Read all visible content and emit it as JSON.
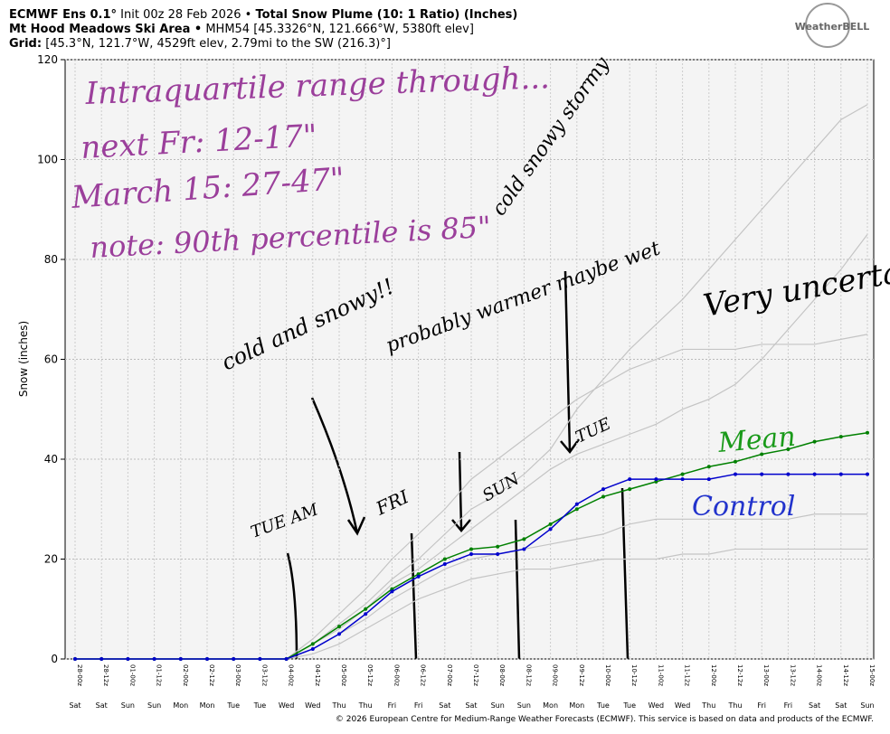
{
  "chart_data": {
    "type": "line",
    "header": {
      "line1": [
        "ECMWF Ens 0.1°",
        "Init 00z 28 Feb 2026 •",
        "Total Snow Plume (10: 1 Ratio) (Inches)"
      ],
      "line2": [
        "Mt Hood Meadows Ski Area •",
        "MHM54 [45.3326°N, 121.666°W, 5380ft elev]"
      ],
      "line3": [
        "Grid:",
        "[45.3°N, 121.7°W, 4529ft elev, 2.79mi to the SW (216.3)°]"
      ]
    },
    "logo": "WeatherBELL",
    "footer": "© 2026 European Centre for Medium-Range Weather Forecasts (ECMWF). This service is based on data and products of the ECMWF.",
    "y_label": "Snow (inches)",
    "ylim": [
      0,
      120
    ],
    "yticks": [
      0,
      20,
      40,
      60,
      80,
      100,
      120
    ],
    "grid": true,
    "categories": [
      "28-00z",
      "28-12z",
      "01-00z",
      "01-12z",
      "02-00z",
      "02-12z",
      "03-00z",
      "03-12z",
      "04-00z",
      "04-12z",
      "05-00z",
      "05-12z",
      "06-00z",
      "06-12z",
      "07-00z",
      "07-12z",
      "08-00z",
      "08-12z",
      "09-00z",
      "09-12z",
      "10-00z",
      "10-12z",
      "11-00z",
      "11-12z",
      "12-00z",
      "12-12z",
      "13-00z",
      "13-12z",
      "14-00z",
      "14-12z",
      "15-00z"
    ],
    "day_labels": [
      "Sat",
      "Sat",
      "Sun",
      "Sun",
      "Mon",
      "Mon",
      "Tue",
      "Tue",
      "Wed",
      "Wed",
      "Thu",
      "Thu",
      "Fri",
      "Fri",
      "Sat",
      "Sat",
      "Sun",
      "Sun",
      "Mon",
      "Mon",
      "Tue",
      "Tue",
      "Wed",
      "Wed",
      "Thu",
      "Thu",
      "Fri",
      "Fri",
      "Sat",
      "Sat",
      "Sun"
    ],
    "members": [
      {
        "color": "#c4c4c4",
        "values": [
          0,
          0,
          0,
          0,
          0,
          0,
          0,
          0,
          0,
          3,
          7,
          11,
          16,
          20,
          25,
          30,
          33,
          37,
          42,
          50,
          56,
          62,
          67,
          72,
          78,
          84,
          90,
          96,
          102,
          108,
          111
        ]
      },
      {
        "color": "#c4c4c4",
        "values": [
          0,
          0,
          0,
          0,
          0,
          0,
          0,
          0,
          0,
          2,
          5,
          8,
          12,
          15,
          18,
          20,
          21,
          22,
          23,
          24,
          25,
          27,
          28,
          28,
          28,
          28,
          28,
          28,
          29,
          29,
          29
        ]
      },
      {
        "color": "#c4c4c4",
        "values": [
          0,
          0,
          0,
          0,
          0,
          0,
          0,
          0,
          0,
          4,
          9,
          14,
          20,
          25,
          30,
          36,
          40,
          44,
          48,
          52,
          55,
          58,
          60,
          62,
          62,
          62,
          63,
          63,
          63,
          64,
          65
        ]
      },
      {
        "color": "#c4c4c4",
        "values": [
          0,
          0,
          0,
          0,
          0,
          0,
          0,
          0,
          0,
          1,
          3,
          6,
          9,
          12,
          14,
          16,
          17,
          18,
          18,
          19,
          20,
          20,
          20,
          21,
          21,
          22,
          22,
          22,
          22,
          22,
          22
        ]
      },
      {
        "color": "#c4c4c4",
        "values": [
          0,
          0,
          0,
          0,
          0,
          0,
          0,
          0,
          0,
          3,
          6,
          10,
          15,
          18,
          22,
          26,
          30,
          34,
          38,
          41,
          43,
          45,
          47,
          50,
          52,
          55,
          60,
          66,
          72,
          78,
          85
        ]
      }
    ],
    "series": [
      {
        "name": "Mean",
        "color": "#008000",
        "values": [
          0,
          0,
          0,
          0,
          0,
          0,
          0,
          0,
          0,
          3,
          6.5,
          10,
          14,
          17,
          20,
          22,
          22.5,
          24,
          27,
          30,
          32.5,
          34,
          35.5,
          37,
          38.5,
          39.5,
          41,
          42,
          43.5,
          44.5,
          45.3
        ]
      },
      {
        "name": "Control",
        "color": "#0000cc",
        "values": [
          0,
          0,
          0,
          0,
          0,
          0,
          0,
          0,
          0,
          2,
          5,
          9,
          13.5,
          16.5,
          19,
          21,
          21,
          22,
          26,
          31,
          34,
          36,
          36,
          36,
          36,
          37,
          37,
          37,
          37,
          37,
          37
        ]
      }
    ],
    "annotations": [
      {
        "text": "Intraquartile range through...",
        "color": "#9b3f9b"
      },
      {
        "text": "next Fr: 12-17\"",
        "color": "#9b3f9b"
      },
      {
        "text": "March 15: 27-47\"",
        "color": "#9b3f9b"
      },
      {
        "text": "note: 90th percentile is 85\"",
        "color": "#9b3f9b"
      },
      {
        "text": "cold and snowy!!",
        "color": "#000000"
      },
      {
        "text": "probably warmer maybe wet",
        "color": "#000000"
      },
      {
        "text": "cold snowy stormy",
        "color": "#000000"
      },
      {
        "text": "Very uncertain",
        "color": "#000000"
      },
      {
        "text": "Mean",
        "color": "#1a9a1a"
      },
      {
        "text": "Control",
        "color": "#2233cc"
      },
      {
        "text": "TUE AM",
        "color": "#000000"
      },
      {
        "text": "FRI",
        "color": "#000000"
      },
      {
        "text": "SUN",
        "color": "#000000"
      },
      {
        "text": "TUE",
        "color": "#000000"
      }
    ]
  }
}
